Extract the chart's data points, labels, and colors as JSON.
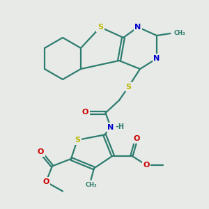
{
  "background_color": "#e8eae8",
  "bond_color": "#2d7d6e",
  "sulfur_color": "#b8b800",
  "nitrogen_color": "#0000cc",
  "oxygen_color": "#cc0000",
  "line_width": 1.6,
  "figsize": [
    3.0,
    3.0
  ],
  "dpi": 100,
  "xlim": [
    0,
    10
  ],
  "ylim": [
    0,
    10
  ]
}
